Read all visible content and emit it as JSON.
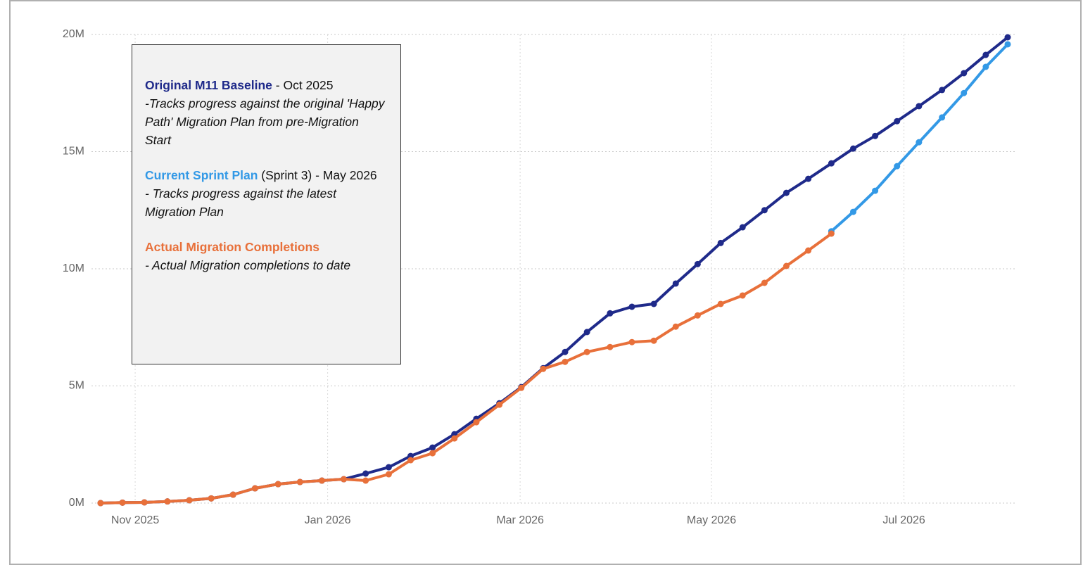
{
  "chart_data": {
    "type": "line",
    "x": [
      2025.803,
      2025.822,
      2025.841,
      2025.861,
      2025.88,
      2025.899,
      2025.918,
      2025.937,
      2025.957,
      2025.976,
      2025.995,
      2026.014,
      2026.033,
      2026.053,
      2026.072,
      2026.091,
      2026.11,
      2026.129,
      2026.149,
      2026.168,
      2026.187,
      2026.206,
      2026.225,
      2026.245,
      2026.264,
      2026.283,
      2026.302,
      2026.321,
      2026.341,
      2026.36,
      2026.379,
      2026.398,
      2026.417,
      2026.437,
      2026.456,
      2026.475,
      2026.494,
      2026.513,
      2026.533,
      2026.552,
      2026.571,
      2026.59
    ],
    "xlim": [
      2025.789,
      2026.601
    ],
    "xticks": [
      {
        "value": 2025.833,
        "label": "Nov 2025"
      },
      {
        "value": 2026.0,
        "label": "Jan 2026"
      },
      {
        "value": 2026.167,
        "label": "Mar 2026"
      },
      {
        "value": 2026.333,
        "label": "May 2026"
      },
      {
        "value": 2026.5,
        "label": "Jul 2026"
      }
    ],
    "ylim": [
      0,
      20
    ],
    "yticks": [
      {
        "value": 0,
        "label": "0M"
      },
      {
        "value": 5,
        "label": "5M"
      },
      {
        "value": 10,
        "label": "10M"
      },
      {
        "value": 15,
        "label": "15M"
      },
      {
        "value": 20,
        "label": "20M"
      }
    ],
    "grid": true,
    "series": [
      {
        "name": "Current Sprint Plan",
        "color": "#3399e6",
        "values": [
          null,
          null,
          null,
          null,
          null,
          null,
          null,
          null,
          null,
          null,
          null,
          null,
          null,
          null,
          null,
          null,
          null,
          null,
          null,
          null,
          null,
          null,
          null,
          null,
          null,
          null,
          null,
          null,
          null,
          null,
          null,
          null,
          null,
          11.6,
          12.43,
          13.33,
          14.38,
          15.4,
          16.46,
          17.5,
          18.62,
          19.58
        ]
      },
      {
        "name": "Original M11 Baseline",
        "color": "#1f2a8a",
        "values": [
          0,
          0.02,
          0.03,
          0.07,
          0.12,
          0.2,
          0.36,
          0.63,
          0.81,
          0.9,
          0.96,
          1.02,
          1.26,
          1.53,
          2.01,
          2.37,
          2.94,
          3.6,
          4.26,
          4.95,
          5.76,
          6.45,
          7.3,
          8.1,
          8.38,
          8.5,
          9.37,
          10.2,
          11.1,
          11.77,
          12.5,
          13.24,
          13.84,
          14.5,
          15.13,
          15.67,
          16.3,
          16.94,
          17.63,
          18.35,
          19.13,
          19.88
        ]
      },
      {
        "name": "Actual Migration Completions",
        "color": "#e8703a",
        "values": [
          0,
          0.02,
          0.03,
          0.07,
          0.12,
          0.2,
          0.36,
          0.63,
          0.81,
          0.9,
          0.96,
          1.02,
          0.96,
          1.23,
          1.83,
          2.13,
          2.76,
          3.45,
          4.2,
          4.92,
          5.73,
          6.03,
          6.45,
          6.66,
          6.87,
          6.93,
          7.53,
          8.01,
          8.5,
          8.86,
          9.4,
          10.12,
          10.78,
          11.5,
          null,
          null,
          null,
          null,
          null,
          null,
          null,
          null
        ]
      }
    ],
    "annotations": [
      {
        "series": 1,
        "suffix": " - Oct 2025",
        "description": "-Tracks progress against the original 'Happy Path' Migration Plan from pre-Migration Start"
      },
      {
        "series": 0,
        "suffix": " (Sprint 3) - May 2026",
        "description": "- Tracks progress against the latest Migration Plan"
      },
      {
        "series": 2,
        "suffix": "",
        "description": "- Actual Migration completions to date"
      }
    ]
  }
}
